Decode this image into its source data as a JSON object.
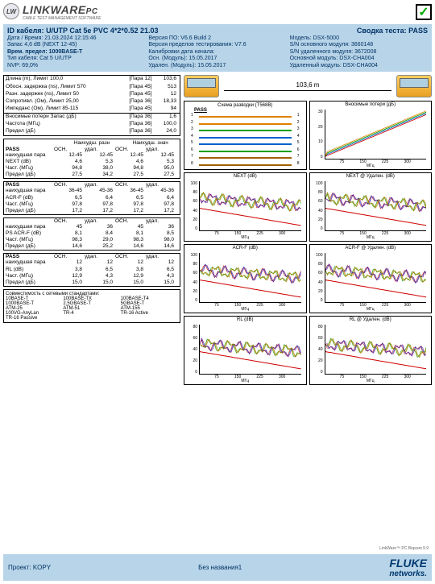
{
  "header": {
    "logo_badge": "LW",
    "logo_text": "LINKWARE",
    "logo_suffix": "PC",
    "logo_sub": "CABLE TEST MANAGEMENT SOFTWARE",
    "check": "✓"
  },
  "band": {
    "cable_id_label": "ID кабеля:",
    "cable_id": "U/UTP Cat 5e PVC 4*2*0.52 21.03",
    "summary_label": "Сводка теста:",
    "summary": "PASS",
    "rows": [
      [
        "Дата / Время: 21.03.2024  12:15:46",
        "Версия ПО: V6.6 Build 2",
        "Модель: DSX-5000"
      ],
      [
        "Запас 4,6 dB (NEXT 12-45)",
        "Версия пределов тестирования: V7.6",
        "S/N основного модуля: 3660148"
      ],
      [
        "**Врем. предел: 1000BASE-T**",
        "Калибровки дата начала:",
        "S/N удаленного модуля: 3672008"
      ],
      [
        "Тип кабеля: Cat 5 U/UTP",
        "Осн. (Модуль): 15.05.2017",
        "Основной модуль: DSX-CHA004"
      ],
      [
        "NVP: 69,0%",
        "Удален. (Модуль): 15.05.2017",
        "Удаленный модуль: DSX-CHA004"
      ]
    ]
  },
  "params": {
    "rows1": [
      [
        "Длина (m), Лимит 100,0",
        "[Пара 12]",
        "103,6"
      ],
      [
        "Обосн. задержка (ns), Лимит 570",
        "[Пара 45]",
        "513"
      ],
      [
        "Разн. задержек (ns), Лимит 50",
        "[Пара 45]",
        "12"
      ],
      [
        "Сопротивл. (Ом), Лимит 25,00",
        "[Пара 36]",
        "18,33"
      ],
      [
        "Импеданс (Ом), Лимит 85-115",
        "[Пара 45]",
        "94"
      ]
    ],
    "rows2": [
      [
        "Вносимые потери Запас (дБ)",
        "[Пара 36]",
        "1,6"
      ],
      [
        "Частота (МГц)",
        "[Пара 36]",
        "100,0"
      ],
      [
        "Предел (дБ)",
        "[Пара 36]",
        "24,0"
      ]
    ]
  },
  "measure_header": {
    "worst_margin": "Наихудш. разн",
    "worst_value": "Наихудш. знач"
  },
  "sub_headers": [
    "ОСН.",
    "удал.",
    "ОСН.",
    "удал."
  ],
  "blocks": [
    {
      "pass": "PASS",
      "name": "NEXT (dB)",
      "rows": [
        [
          "наихудшая пара",
          "12-45",
          "12-45",
          "12-45",
          "12-45"
        ],
        [
          "NEXT (dB)",
          "4,6",
          "5,3",
          "4,6",
          "5,3"
        ],
        [
          "Част. (МГц)",
          "94,8",
          "38,0",
          "94,8",
          "95,0"
        ],
        [
          "Предел (дБ)",
          "27,5",
          "34,2",
          "27,5",
          "27,5"
        ]
      ]
    },
    {
      "pass": "PASS",
      "name": "ACR-F (dB)",
      "rows": [
        [
          "наихудшая пара",
          "36-45",
          "45-36",
          "36-45",
          "45-36"
        ],
        [
          "ACR-F (dB)",
          "6,5",
          "6,4",
          "6,5",
          "6,4"
        ],
        [
          "Част. (МГц)",
          "97,8",
          "97,8",
          "97,8",
          "97,8"
        ],
        [
          "Предел (дБ)",
          "17,2",
          "17,2",
          "17,2",
          "17,2"
        ]
      ]
    },
    {
      "pass": "",
      "name": "PS ACR-F (dB)",
      "rows": [
        [
          "наихудшая пара",
          "45",
          "36",
          "45",
          "36"
        ],
        [
          "PS ACR-F (dB)",
          "8,1",
          "8,4",
          "8,1",
          "8,5"
        ],
        [
          "Част. (МГц)",
          "98,3",
          "29,0",
          "98,3",
          "98,0"
        ],
        [
          "Предел (дБ)",
          "14,6",
          "25,2",
          "14,6",
          "14,6"
        ]
      ]
    },
    {
      "pass": "PASS",
      "name": "RL (dB)",
      "rows": [
        [
          "наихудшая пара",
          "12",
          "12",
          "12",
          "12"
        ],
        [
          "RL (dB)",
          "3,8",
          "6,5",
          "3,8",
          "6,5"
        ],
        [
          "Част. (МГц)",
          "12,9",
          "4,3",
          "12,9",
          "4,3"
        ],
        [
          "Предел (дБ)",
          "15,0",
          "15,0",
          "15,0",
          "15,0"
        ]
      ]
    }
  ],
  "standards": {
    "title": "Совместимость с сетевыми стандартами:",
    "items": [
      [
        "10BASE-T",
        "100BASE-TX",
        "100BASE-T4"
      ],
      [
        "1000BASE-T",
        "2.5GBASE-T",
        "5GBASE-T"
      ],
      [
        "ATM-25",
        "ATM-51",
        "ATM-155"
      ],
      [
        "100VG-AnyLan",
        "TR-4",
        "TR-16 Active"
      ],
      [
        "TR-16 Passive",
        "",
        ""
      ]
    ]
  },
  "cable_length": "103,6 m",
  "wiremap": {
    "title": "Схема разводки (T568B)",
    "pass": "PASS"
  },
  "wire_colors": [
    "#e08000",
    "#e08000",
    "#00a000",
    "#0060d0",
    "#0060d0",
    "#00a000",
    "#a06000",
    "#a06000"
  ],
  "charts": [
    {
      "title": "Вносимые потери (дБ)",
      "type": "il",
      "ylim": [
        0,
        30
      ],
      "xlim": [
        0,
        350
      ],
      "yticks": [
        "30",
        "20",
        "10",
        "0"
      ],
      "xticks": [
        "",
        "75",
        "150",
        "225",
        "300",
        ""
      ],
      "xlabel": "МГц",
      "colors": [
        "#d00000",
        "#0060d0",
        "#00a000",
        "#e08000"
      ]
    },
    {
      "title": "NEXT (dB)",
      "type": "noisy",
      "ylim": [
        0,
        100
      ],
      "yticks": [
        "100",
        "80",
        "60",
        "40",
        "20",
        "0"
      ],
      "xticks": [
        "",
        "75",
        "150",
        "225",
        "300",
        ""
      ],
      "xlabel": "МГц"
    },
    {
      "title": "NEXT @ Удален. (dB)",
      "type": "noisy",
      "ylim": [
        0,
        100
      ],
      "yticks": [
        "100",
        "80",
        "60",
        "40",
        "20",
        "0"
      ],
      "xticks": [
        "",
        "75",
        "150",
        "225",
        "300",
        ""
      ],
      "xlabel": "МГц"
    },
    {
      "title": "ACR-F (dB)",
      "type": "noisy",
      "ylim": [
        0,
        100
      ],
      "yticks": [
        "100",
        "80",
        "60",
        "40",
        "20",
        "0"
      ],
      "xticks": [
        "",
        "75",
        "150",
        "225",
        "300",
        ""
      ],
      "xlabel": "МГц"
    },
    {
      "title": "ACR-F @ Удален. (dB)",
      "type": "noisy",
      "ylim": [
        0,
        100
      ],
      "yticks": [
        "100",
        "80",
        "60",
        "40",
        "20",
        "0"
      ],
      "xticks": [
        "",
        "75",
        "150",
        "225",
        "300",
        ""
      ],
      "xlabel": "МГц"
    },
    {
      "title": "RL (dB)",
      "type": "noisy2",
      "ylim": [
        0,
        80
      ],
      "yticks": [
        "80",
        "60",
        "40",
        "20",
        "0"
      ],
      "xticks": [
        "",
        "75",
        "150",
        "225",
        "300",
        ""
      ],
      "xlabel": "МГц"
    },
    {
      "title": "RL @ Удален. (dB)",
      "type": "noisy2",
      "ylim": [
        0,
        80
      ],
      "yticks": [
        "80",
        "60",
        "40",
        "20",
        "0"
      ],
      "xticks": [
        "",
        "75",
        "150",
        "225",
        "300",
        ""
      ],
      "xlabel": "МГц"
    }
  ],
  "trace_colors": [
    "#d00000",
    "#00a000",
    "#0060d0",
    "#e08000",
    "#800080",
    "#808000"
  ],
  "footer": {
    "note": "LinkWare™ PC Версия 9.9",
    "project_label": "Проект:",
    "project": "KOPY",
    "doc": "Без названия1",
    "brand": "FLUKE",
    "brand_sub": "networks."
  }
}
